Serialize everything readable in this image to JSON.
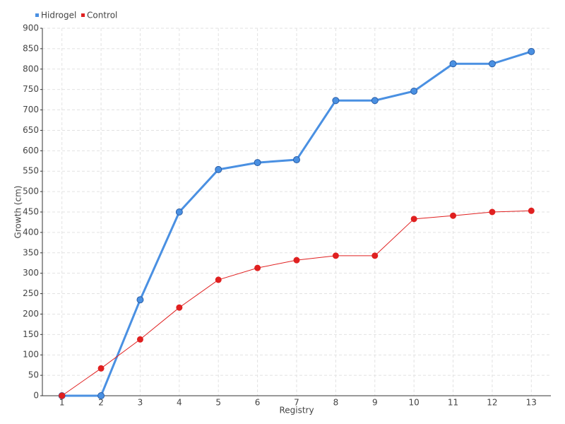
{
  "chart_data": {
    "type": "line",
    "x_label": "Registry",
    "y_label": "Growth (cm)",
    "categories": [
      "1",
      "2",
      "3",
      "4",
      "5",
      "6",
      "7",
      "8",
      "9",
      "10",
      "11",
      "12",
      "13"
    ],
    "series": [
      {
        "name": "Hidrogel",
        "color": "#4a90e2",
        "values": [
          0,
          0,
          235,
          450,
          554,
          571,
          578,
          723,
          723,
          746,
          813,
          813,
          843
        ]
      },
      {
        "name": "Control",
        "color": "#e02020",
        "values": [
          0,
          67,
          138,
          216,
          284,
          313,
          332,
          343,
          343,
          433,
          441,
          450,
          453
        ]
      }
    ],
    "ylim": [
      0,
      900
    ],
    "yticks": [
      0,
      50,
      100,
      150,
      200,
      250,
      300,
      350,
      400,
      450,
      500,
      550,
      600,
      650,
      700,
      750,
      800,
      850,
      900
    ],
    "grid": true,
    "legend": "top-left"
  }
}
